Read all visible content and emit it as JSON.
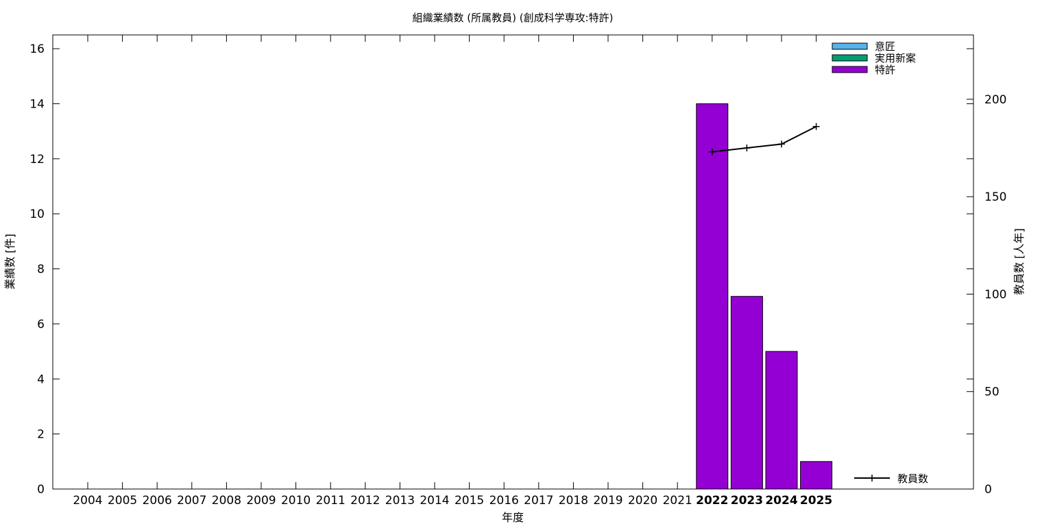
{
  "chart_data": {
    "type": "bar",
    "title": "組織業績数 (所属教員) (創成科学専攻:特許)",
    "xlabel": "年度",
    "ylabel": "業績数 [件]",
    "y2label": "教員数 [人年]",
    "categories": [
      "2004",
      "2005",
      "2006",
      "2007",
      "2008",
      "2009",
      "2010",
      "2011",
      "2012",
      "2013",
      "2014",
      "2015",
      "2016",
      "2017",
      "2018",
      "2019",
      "2020",
      "2021",
      "2022",
      "2023",
      "2024",
      "2025"
    ],
    "highlighted_categories": [
      "2022",
      "2023",
      "2024",
      "2025"
    ],
    "ylim": [
      0,
      16.5
    ],
    "y_ticks": [
      0,
      2,
      4,
      6,
      8,
      10,
      12,
      14,
      16
    ],
    "y2lim": [
      0,
      233
    ],
    "y2_ticks": [
      0,
      50,
      100,
      150,
      200
    ],
    "stacked": true,
    "series": [
      {
        "name": "意匠",
        "color": "#56b4e9",
        "values": [
          0,
          0,
          0,
          0,
          0,
          0,
          0,
          0,
          0,
          0,
          0,
          0,
          0,
          0,
          0,
          0,
          0,
          0,
          0,
          0,
          0,
          0
        ]
      },
      {
        "name": "実用新案",
        "color": "#009e73",
        "values": [
          0,
          0,
          0,
          0,
          0,
          0,
          0,
          0,
          0,
          0,
          0,
          0,
          0,
          0,
          0,
          0,
          0,
          0,
          0,
          0,
          0,
          0
        ]
      },
      {
        "name": "特許",
        "color": "#9400d3",
        "values": [
          0,
          0,
          0,
          0,
          0,
          0,
          0,
          0,
          0,
          0,
          0,
          0,
          0,
          0,
          0,
          0,
          0,
          0,
          14,
          7,
          5,
          1
        ]
      }
    ],
    "line_series": {
      "name": "教員数",
      "axis": "y2",
      "color": "#000000",
      "x": [
        "2022",
        "2023",
        "2024",
        "2025"
      ],
      "values": [
        173,
        175,
        177,
        186
      ]
    },
    "legend_position": "top-right",
    "line_legend_position": "bottom-right",
    "grid": false
  }
}
